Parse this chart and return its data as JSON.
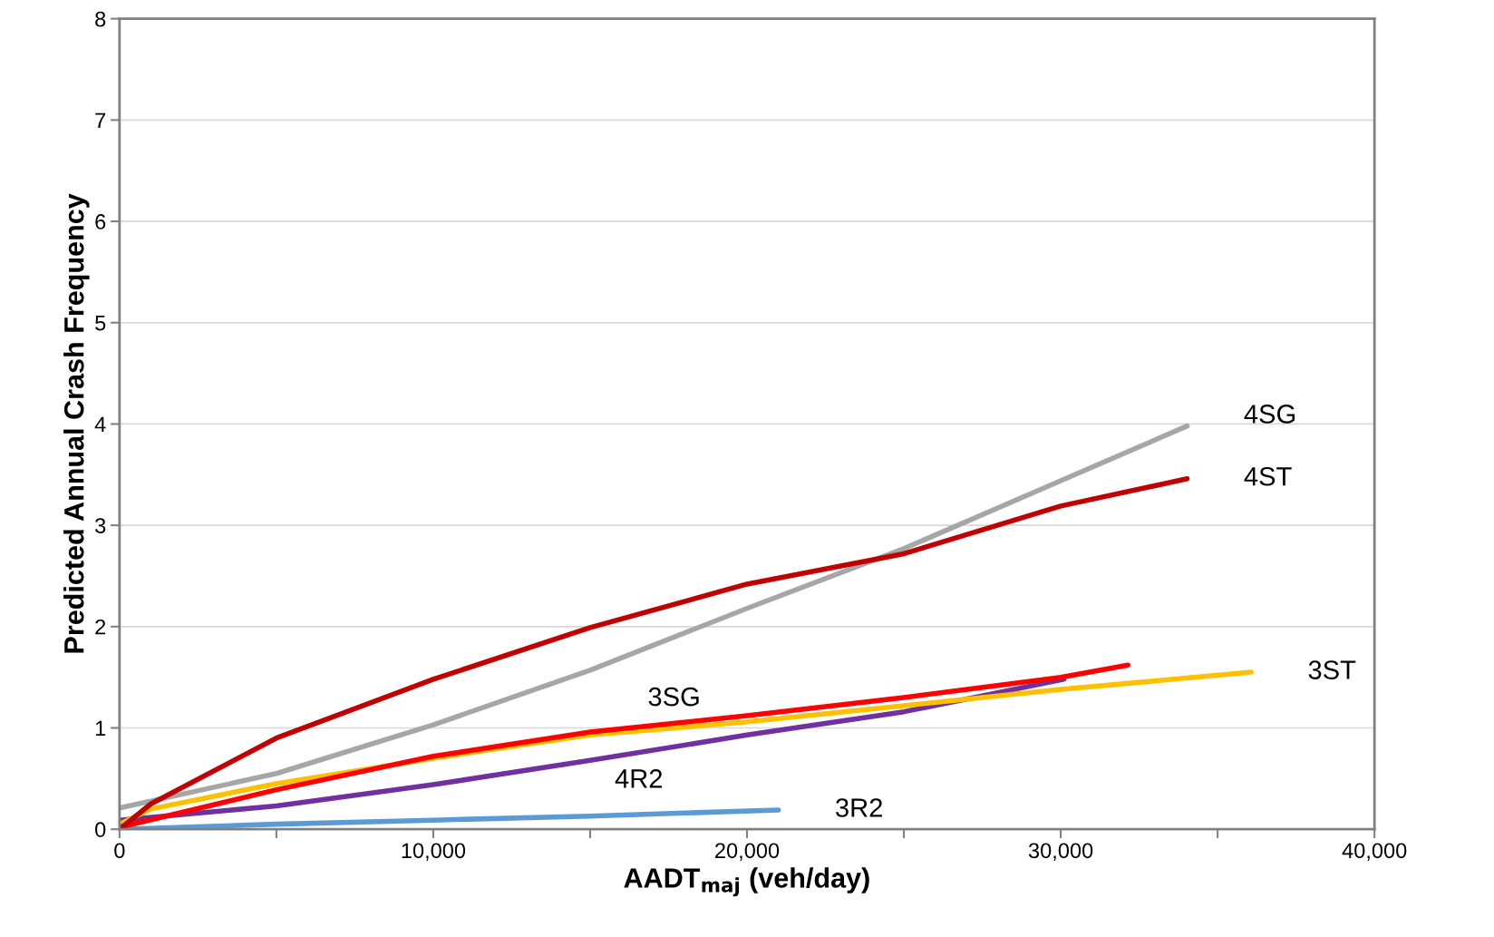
{
  "chart_data": {
    "type": "line",
    "xlabel": "AADT$_{maj}$ (veh/day)",
    "ylabel": "Predicted Annual Crash Frequency",
    "xlim": [
      0,
      40000
    ],
    "ylim": [
      0,
      8
    ],
    "xticks": [
      0,
      {
        "value": 5000,
        "label": null
      },
      {
        "value": 10000,
        "label": "10,000"
      },
      {
        "value": 15000,
        "label": null
      },
      {
        "value": 20000,
        "label": "20,000"
      },
      {
        "value": 25000,
        "label": null
      },
      {
        "value": 30000,
        "label": "30,000"
      },
      {
        "value": 35000,
        "label": null
      },
      {
        "value": 40000,
        "label": "40,000"
      }
    ],
    "yticks": [
      0,
      1,
      2,
      3,
      4,
      5,
      6,
      7,
      8
    ],
    "grid": "y",
    "line_style": "solid",
    "marker": "none",
    "series": [
      {
        "name": "3R2",
        "color": "#5b9bd5",
        "x": [
          0,
          5000,
          10000,
          15000,
          21000
        ],
        "values": [
          0.0,
          0.05,
          0.09,
          0.13,
          0.19
        ]
      },
      {
        "name": "4R2",
        "color": "#7030a0",
        "x": [
          0,
          5000,
          10000,
          15000,
          20000,
          25000,
          30100
        ],
        "values": [
          0.09,
          0.23,
          0.44,
          0.68,
          0.93,
          1.16,
          1.48
        ]
      },
      {
        "name": "3ST",
        "color": "#ffc000",
        "x": [
          0,
          1000,
          5000,
          10000,
          15000,
          20000,
          25000,
          30000,
          36070
        ],
        "values": [
          0.05,
          0.2,
          0.45,
          0.7,
          0.93,
          1.06,
          1.22,
          1.38,
          1.55
        ]
      },
      {
        "name": "3SG",
        "color": "#ff0000",
        "x": [
          0,
          5000,
          10000,
          15000,
          20000,
          25000,
          30000,
          32140
        ],
        "values": [
          0.02,
          0.39,
          0.72,
          0.96,
          1.12,
          1.3,
          1.5,
          1.62
        ]
      },
      {
        "name": "4SG",
        "color": "#a6a6a6",
        "x": [
          0,
          5000,
          10000,
          15000,
          20000,
          25000,
          30000,
          34030
        ],
        "values": [
          0.21,
          0.55,
          1.03,
          1.57,
          2.18,
          2.77,
          3.44,
          3.98
        ]
      },
      {
        "name": "4ST",
        "color": "#c00000",
        "x": [
          0,
          1000,
          5000,
          10000,
          15000,
          20000,
          25000,
          30000,
          34030
        ],
        "values": [
          0.0,
          0.25,
          0.9,
          1.48,
          1.99,
          2.42,
          2.72,
          3.19,
          3.46
        ]
      }
    ]
  }
}
